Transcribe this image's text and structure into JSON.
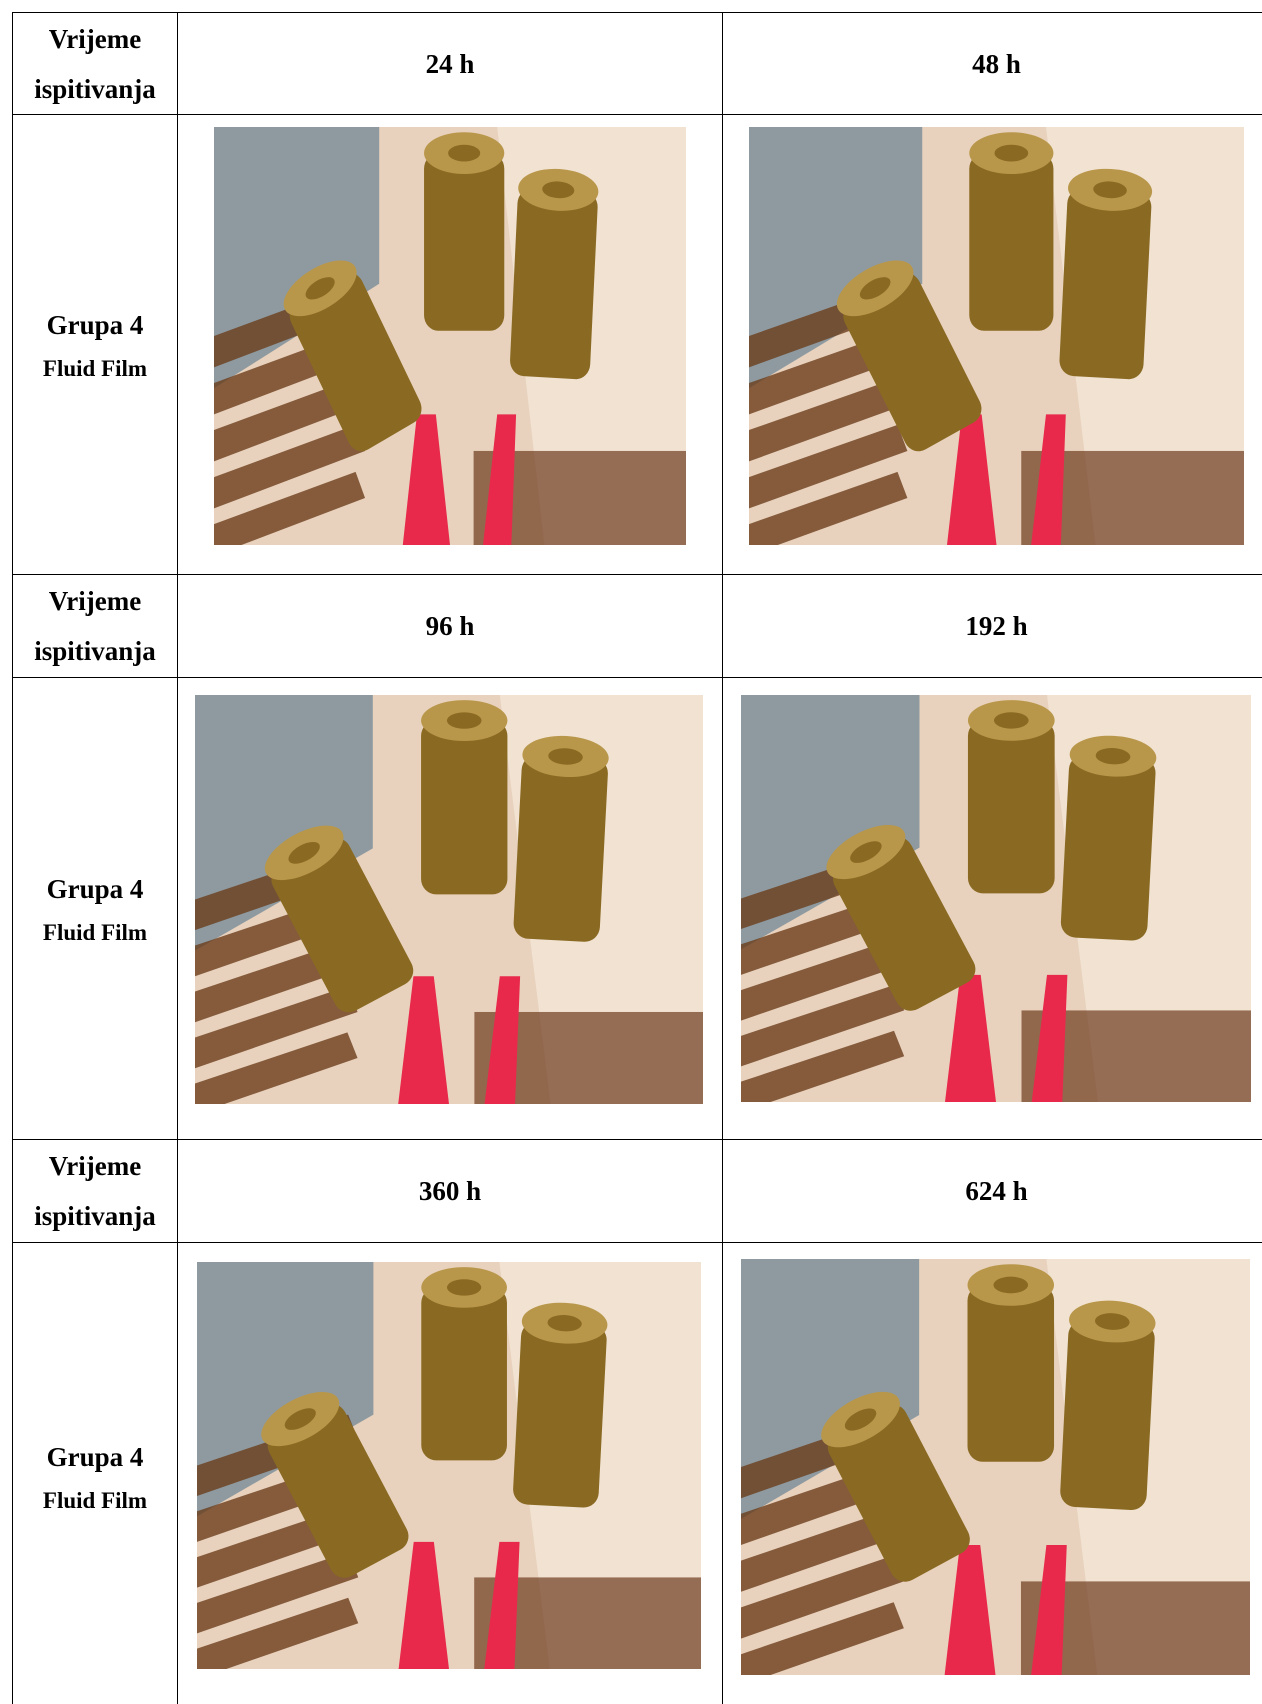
{
  "sections": [
    {
      "time_label": "Vrijeme ispitivanja",
      "times": [
        "24 h",
        "48 h"
      ],
      "group": "Grupa 4",
      "product": "Fluid Film"
    },
    {
      "time_label": "Vrijeme ispitivanja",
      "times": [
        "96 h",
        "192 h"
      ],
      "group": "Grupa 4",
      "product": "Fluid Film"
    },
    {
      "time_label": "Vrijeme ispitivanja",
      "times": [
        "360 h",
        "624 h"
      ],
      "group": "Grupa 4",
      "product": "Fluid Film"
    }
  ]
}
